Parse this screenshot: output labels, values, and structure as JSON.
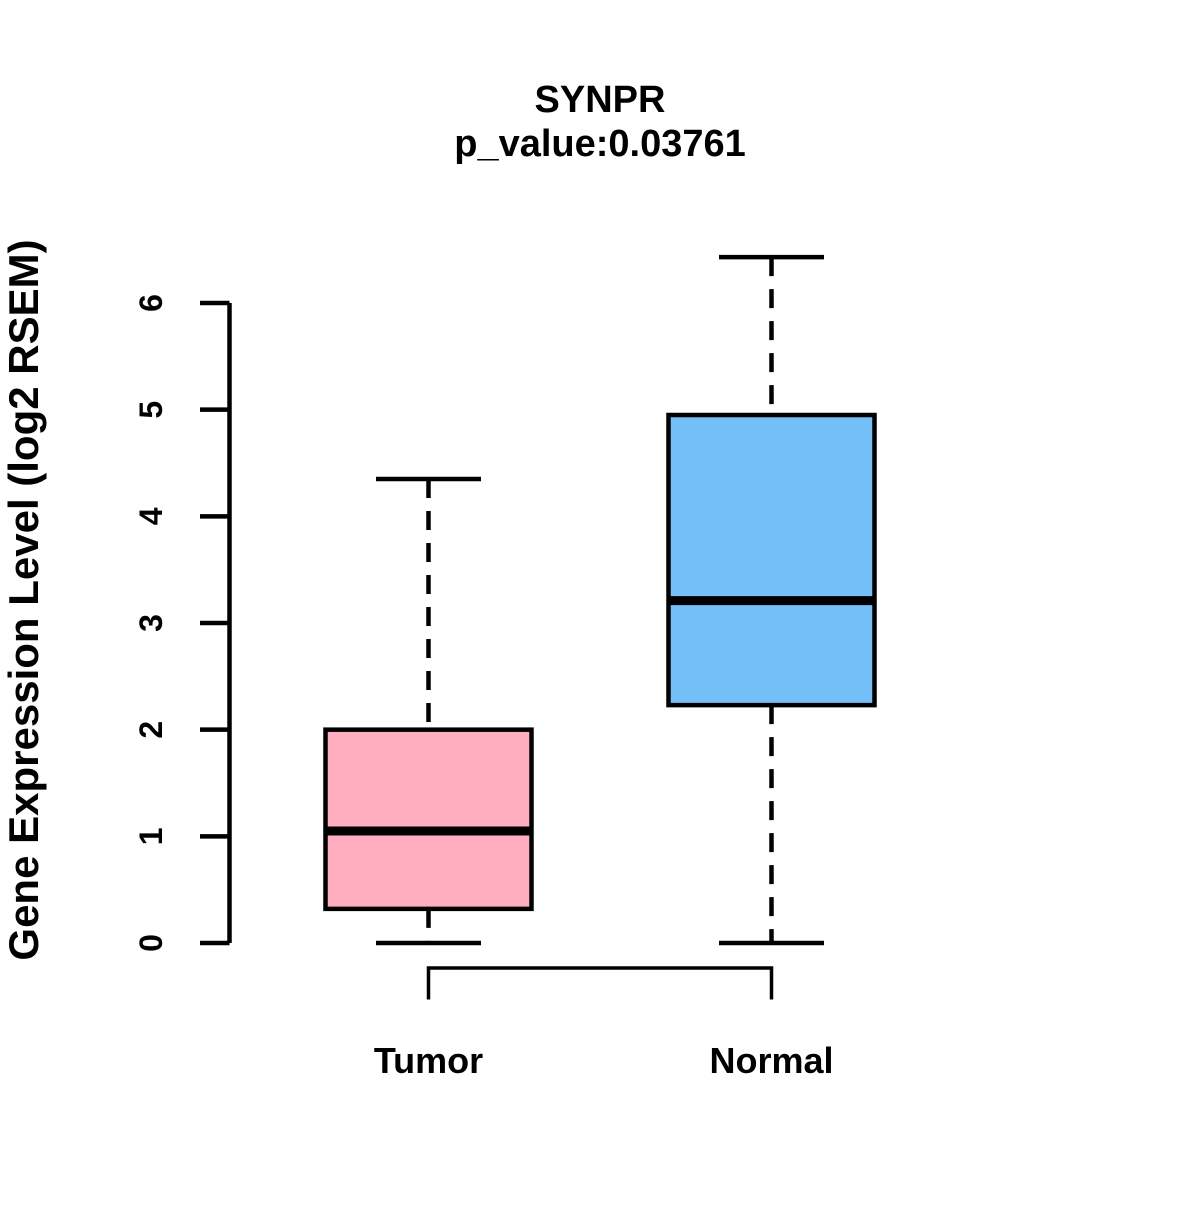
{
  "page": {
    "background": "#ffffff",
    "text_color": "#000000"
  },
  "chart_data": {
    "type": "boxplot",
    "title": "SYNPR",
    "subtitle": "p_value:0.03761",
    "gene": "SYNPR",
    "p_value": 0.03761,
    "ylabel": "Gene Expression Level (log2 RSEM)",
    "xlabel": "",
    "categories": [
      "Tumor",
      "Normal"
    ],
    "series": [
      {
        "name": "Tumor",
        "min": 0,
        "q1": 0.32,
        "median": 1.05,
        "q3": 2.0,
        "max": 4.35,
        "fill": "#FFAEC0"
      },
      {
        "name": "Normal",
        "min": 0,
        "q1": 2.23,
        "median": 3.21,
        "q3": 4.95,
        "max": 6.43,
        "fill": "#74BFF7"
      }
    ],
    "ylim": [
      0,
      6
    ],
    "yticks": [
      0,
      1,
      2,
      3,
      4,
      5,
      6
    ],
    "grid": false,
    "legend": false,
    "whisker_style": "dashed",
    "comparison_bracket": {
      "from": "Tumor",
      "to": "Normal",
      "position": "below-axis"
    },
    "stroke_color": "#000000"
  }
}
